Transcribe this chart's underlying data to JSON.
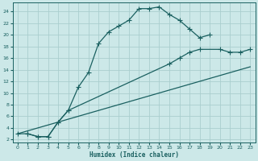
{
  "xlabel": "Humidex (Indice chaleur)",
  "bg_color": "#cce8e8",
  "grid_color": "#aacece",
  "line_color": "#1a6060",
  "xlim": [
    -0.5,
    23.5
  ],
  "ylim": [
    1.5,
    25.5
  ],
  "xticks": [
    0,
    1,
    2,
    3,
    4,
    5,
    6,
    7,
    8,
    9,
    10,
    11,
    12,
    13,
    14,
    15,
    16,
    17,
    18,
    19,
    20,
    21,
    22,
    23
  ],
  "yticks": [
    2,
    4,
    6,
    8,
    10,
    12,
    14,
    16,
    18,
    20,
    22,
    24
  ],
  "curve1_x": [
    0,
    1,
    2,
    3,
    4,
    5,
    6,
    7,
    8,
    9,
    10,
    11,
    12,
    13,
    14,
    15,
    16,
    17,
    18,
    19
  ],
  "curve1_y": [
    3,
    3,
    2.5,
    2.5,
    5,
    7,
    11,
    13.5,
    18.5,
    20.5,
    21.5,
    22.5,
    24.5,
    24.5,
    24.8,
    23.5,
    22.5,
    21,
    19.5,
    20
  ],
  "curve2_x": [
    1,
    2,
    3,
    4,
    5,
    15,
    16,
    17,
    18,
    20,
    21,
    22,
    23
  ],
  "curve2_y": [
    3,
    2.5,
    2.5,
    5,
    7,
    15,
    16,
    17,
    17.5,
    17.5,
    17,
    17,
    17.5
  ],
  "curve3_x": [
    0,
    23
  ],
  "curve3_y": [
    3,
    14.5
  ]
}
